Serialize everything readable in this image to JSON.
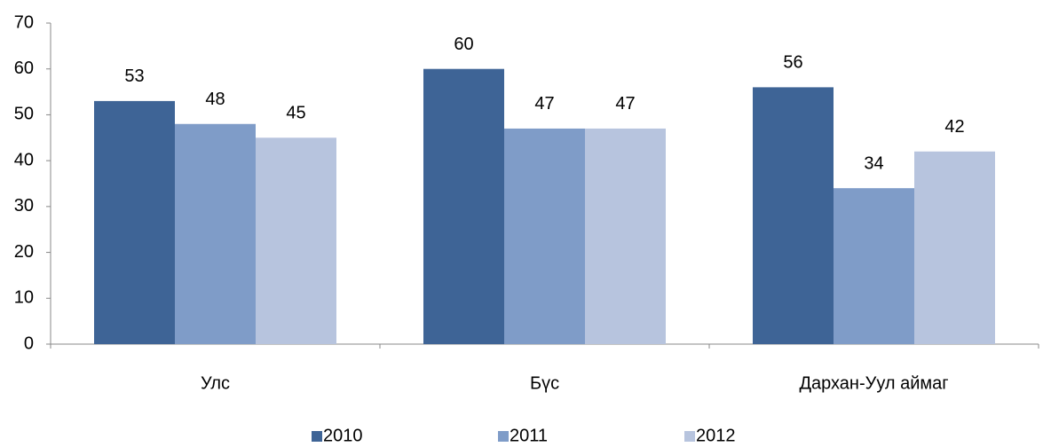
{
  "chart_data": {
    "type": "bar",
    "categories": [
      "Улс",
      "Бүс",
      "Дархан-Уул аймаг"
    ],
    "series": [
      {
        "name": "2010",
        "color": "#3e6496",
        "values": [
          53,
          60,
          56
        ]
      },
      {
        "name": "2011",
        "color": "#7f9cc8",
        "values": [
          48,
          47,
          34
        ]
      },
      {
        "name": "2012",
        "color": "#b7c4de",
        "values": [
          45,
          47,
          42
        ]
      }
    ],
    "ylim": [
      0,
      70
    ],
    "yticks": [
      0,
      10,
      20,
      30,
      40,
      50,
      60,
      70
    ],
    "grid": false,
    "legend": "bottom"
  }
}
